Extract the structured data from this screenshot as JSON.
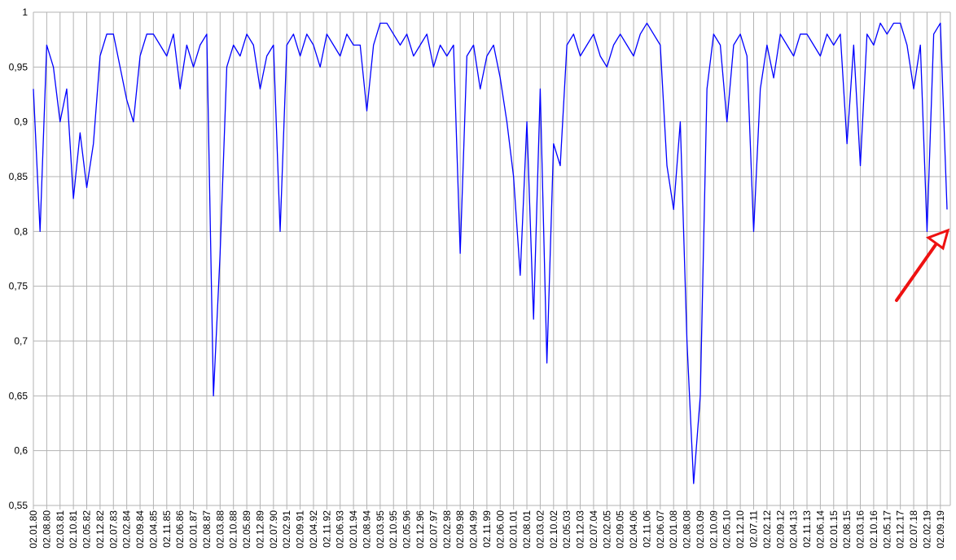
{
  "chart_data": {
    "type": "line",
    "categories": [
      "02.01.80",
      null,
      "02.08.80",
      null,
      "02.03.81",
      null,
      "02.10.81",
      null,
      "02.05.82",
      null,
      "02.12.82",
      null,
      "02.07.83",
      null,
      "02.02.84",
      null,
      "02.09.84",
      null,
      "02.04.85",
      null,
      "02.11.85",
      null,
      "02.06.86",
      null,
      "02.01.87",
      null,
      "02.08.87",
      null,
      "02.03.88",
      null,
      "02.10.88",
      null,
      "02.05.89",
      null,
      "02.12.89",
      null,
      "02.07.90",
      null,
      "02.02.91",
      null,
      "02.09.91",
      null,
      "02.04.92",
      null,
      "02.11.92",
      null,
      "02.06.93",
      null,
      "02.01.94",
      null,
      "02.08.94",
      null,
      "02.03.95",
      null,
      "02.10.95",
      null,
      "02.05.96",
      null,
      "02.12.96",
      null,
      "02.07.97",
      null,
      "02.02.98",
      null,
      "02.09.98",
      null,
      "02.04.99",
      null,
      "02.11.99",
      null,
      "02.06.00",
      null,
      "02.01.01",
      null,
      "02.08.01",
      null,
      "02.03.02",
      null,
      "02.10.02",
      null,
      "02.05.03",
      null,
      "02.12.03",
      null,
      "02.07.04",
      null,
      "02.02.05",
      null,
      "02.09.05",
      null,
      "02.04.06",
      null,
      "02.11.06",
      null,
      "02.06.07",
      null,
      "02.01.08",
      null,
      "02.08.08",
      null,
      "02.03.09",
      null,
      "02.10.09",
      null,
      "02.05.10",
      null,
      "02.12.10",
      null,
      "02.07.11",
      null,
      "02.02.12",
      null,
      "02.09.12",
      null,
      "02.04.13",
      null,
      "02.11.13",
      null,
      "02.06.14",
      null,
      "02.01.15",
      null,
      "02.08.15",
      null,
      "02.03.16",
      null,
      "02.10.16",
      null,
      "02.05.17",
      null,
      "02.12.17",
      null,
      "02.07.18",
      null,
      "02.02.19",
      null,
      "02.09.19",
      null
    ],
    "series": [
      {
        "color": "#0000ff",
        "values": [
          0.93,
          0.8,
          0.97,
          0.95,
          0.9,
          0.93,
          0.83,
          0.89,
          0.84,
          0.88,
          0.96,
          0.98,
          0.98,
          0.95,
          0.92,
          0.9,
          0.96,
          0.98,
          0.98,
          0.97,
          0.96,
          0.98,
          0.93,
          0.97,
          0.95,
          0.97,
          0.98,
          0.65,
          0.78,
          0.95,
          0.97,
          0.96,
          0.98,
          0.97,
          0.93,
          0.96,
          0.97,
          0.8,
          0.97,
          0.98,
          0.96,
          0.98,
          0.97,
          0.95,
          0.98,
          0.97,
          0.96,
          0.98,
          0.97,
          0.97,
          0.91,
          0.97,
          0.99,
          0.99,
          0.98,
          0.97,
          0.98,
          0.96,
          0.97,
          0.98,
          0.95,
          0.97,
          0.96,
          0.97,
          0.78,
          0.96,
          0.97,
          0.93,
          0.96,
          0.97,
          0.94,
          0.9,
          0.85,
          0.76,
          0.9,
          0.72,
          0.93,
          0.68,
          0.88,
          0.86,
          0.97,
          0.98,
          0.96,
          0.97,
          0.98,
          0.96,
          0.95,
          0.97,
          0.98,
          0.97,
          0.96,
          0.98,
          0.99,
          0.98,
          0.97,
          0.86,
          0.82,
          0.9,
          0.7,
          0.57,
          0.65,
          0.93,
          0.98,
          0.97,
          0.9,
          0.97,
          0.98,
          0.96,
          0.8,
          0.93,
          0.97,
          0.94,
          0.98,
          0.97,
          0.96,
          0.98,
          0.98,
          0.97,
          0.96,
          0.98,
          0.97,
          0.98,
          0.88,
          0.97,
          0.86,
          0.98,
          0.97,
          0.99,
          0.98,
          0.99,
          0.99,
          0.97,
          0.93,
          0.97,
          0.8,
          0.98,
          0.99,
          0.82
        ]
      }
    ],
    "ylim": [
      0.55,
      1
    ],
    "yticks": [
      {
        "value": 0.55,
        "label": "0,55"
      },
      {
        "value": 0.6,
        "label": "0,6"
      },
      {
        "value": 0.65,
        "label": "0,65"
      },
      {
        "value": 0.7,
        "label": "0,7"
      },
      {
        "value": 0.75,
        "label": "0,75"
      },
      {
        "value": 0.8,
        "label": "0,8"
      },
      {
        "value": 0.85,
        "label": "0,85"
      },
      {
        "value": 0.9,
        "label": "0,9"
      },
      {
        "value": 0.95,
        "label": "0,95"
      },
      1
    ],
    "grid": true
  }
}
